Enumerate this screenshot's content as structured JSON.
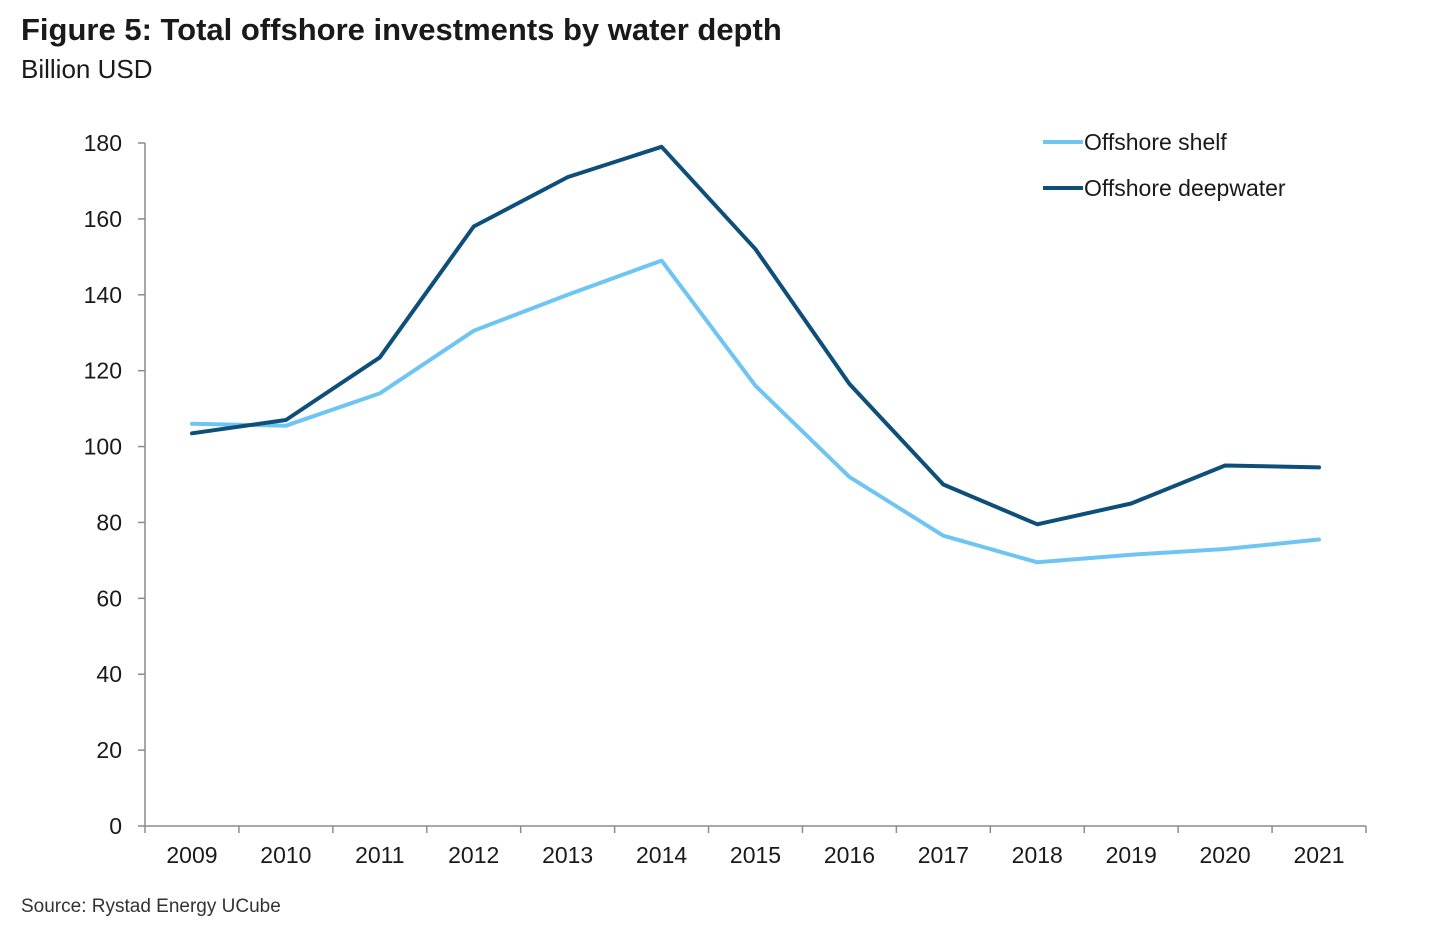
{
  "header": {
    "title": "Figure 5: Total offshore investments by water depth",
    "subtitle": "Billion USD"
  },
  "footer": {
    "source": "Source: Rystad Energy UCube"
  },
  "chart_data": {
    "type": "line",
    "title": "Figure 5: Total offshore investments by water depth",
    "subtitle": "Billion USD",
    "xlabel": "",
    "ylabel": "",
    "x": [
      "2009",
      "2010",
      "2011",
      "2012",
      "2013",
      "2014",
      "2015",
      "2016",
      "2017",
      "2018",
      "2019",
      "2020",
      "2021"
    ],
    "ylim": [
      0,
      180
    ],
    "yticks": [
      0,
      20,
      40,
      60,
      80,
      100,
      120,
      140,
      160,
      180
    ],
    "grid": false,
    "legend_position": "top-right",
    "series": [
      {
        "name": "Offshore shelf",
        "color": "#6ec5f3",
        "values": [
          106,
          105.5,
          114,
          130.5,
          140,
          149,
          116,
          92,
          76.5,
          69.5,
          71.5,
          73,
          75.5
        ]
      },
      {
        "name": "Offshore deepwater",
        "color": "#0e4f79",
        "values": [
          103.5,
          107,
          123.5,
          158,
          171,
          179,
          152,
          116.5,
          90,
          79.5,
          85,
          95,
          94.5
        ]
      }
    ]
  }
}
